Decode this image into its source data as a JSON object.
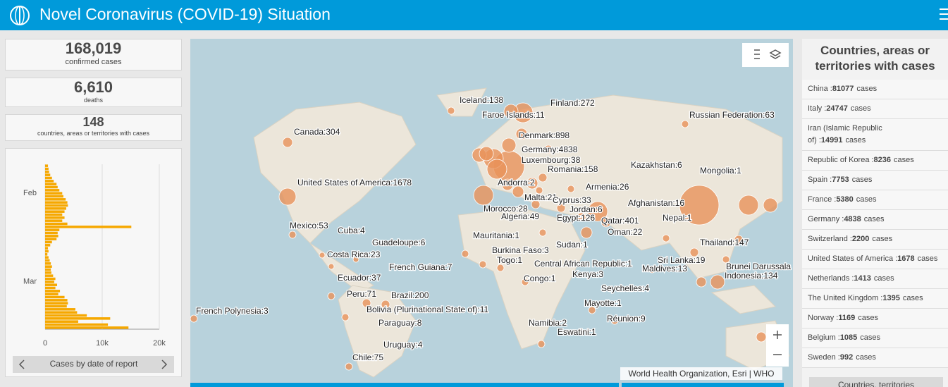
{
  "header": {
    "title": "Novel Coronavirus (COVID-19) Situation"
  },
  "stats": [
    {
      "value": "168,019",
      "label": "confirmed cases"
    },
    {
      "value": "6,610",
      "label": "deaths"
    },
    {
      "value": "148",
      "label": "countries, areas or territories with cases"
    }
  ],
  "chart_data": {
    "type": "bar",
    "orientation": "horizontal",
    "color": "#f6a800",
    "categories": [
      null,
      null,
      null,
      null,
      null,
      null,
      null,
      null,
      null,
      "Feb",
      null,
      null,
      null,
      null,
      null,
      null,
      null,
      null,
      null,
      null,
      null,
      null,
      null,
      null,
      null,
      null,
      null,
      null,
      null,
      null,
      null,
      null,
      null,
      null,
      null,
      null,
      null,
      null,
      "Mar",
      null,
      null,
      null,
      null,
      null,
      null,
      null,
      null,
      null,
      null,
      null,
      null,
      null,
      null,
      null
    ],
    "values": [
      500,
      600,
      700,
      900,
      1200,
      1500,
      2000,
      2200,
      2500,
      3000,
      3200,
      3600,
      3900,
      4000,
      3700,
      3400,
      3000,
      3400,
      3000,
      3900,
      15100,
      2500,
      2200,
      2300,
      2000,
      1200,
      900,
      500,
      600,
      400,
      600,
      800,
      1000,
      1200,
      1000,
      1100,
      1400,
      1800,
      1600,
      2100,
      1800,
      2600,
      2300,
      3400,
      3900,
      4000,
      3800,
      5300,
      5600,
      7300,
      11400,
      5800,
      11000,
      14600
    ],
    "xlim": [
      0,
      20000
    ],
    "xticks": [
      0,
      {
        "value": 10000,
        "label": "10k"
      },
      {
        "value": 20000,
        "label": "20k"
      }
    ],
    "grid": true,
    "caption": "Cases by date of report"
  },
  "map": {
    "labels": [
      "Iceland:138",
      "Finland:272",
      "Faroe Islands:11",
      "Russian Federation:63",
      "Canada:304",
      "Denmark:898",
      "Germany:4838",
      "Luxembourg:38",
      "Kazakhstan:6",
      "Romania:158",
      "Mongolia:1",
      "United States of America:1678",
      "Andorra:2",
      "Armenia:26",
      "Malta:21",
      "Cyprus:33",
      "Afghanistan:16",
      "Morocco:28",
      "Jordan:6",
      "Algeria:49",
      "Egypt:126",
      "Qatar:401",
      "Nepal:1",
      "Mexico:53",
      "Cuba:4",
      "Oman:22",
      "Mauritania:1",
      "Guadeloupe:6",
      "Thailand:147",
      "Sudan:1",
      "Burkina Faso:3",
      "Costa Rica:23",
      "Togo:1",
      "Sri Lanka:19",
      "Central African Republic:1",
      "French Guiana:7",
      "Brunei Darussala",
      "Maldives:13",
      "Kenya:3",
      "Ecuador:37",
      "Indonesia:134",
      "Congo:1",
      "Seychelles:4",
      "Peru:71",
      "Brazil:200",
      "Mayotte:1",
      "Bolivia (Plurinational State of):11",
      "French Polynesia:3",
      "Réunion:9",
      "Paraguay:8",
      "Namibia:2",
      "Eswatini:1",
      "Uruguay:4",
      "Chile:75"
    ],
    "attribution": "World Health Organization, Esri | WHO"
  },
  "list": {
    "title": "Countries, areas or territories with cases",
    "sep": ":",
    "unit": "cases",
    "items": [
      [
        "China",
        81077
      ],
      [
        "Italy",
        24747
      ],
      [
        "Iran (Islamic Republic of)",
        14991
      ],
      [
        "Republic of Korea",
        8236
      ],
      [
        "Spain",
        7753
      ],
      [
        "France",
        5380
      ],
      [
        "Germany",
        4838
      ],
      [
        "Switzerland",
        2200
      ],
      [
        "United States of America",
        1678
      ],
      [
        "Netherlands",
        1413
      ],
      [
        "The United Kingdom",
        1395
      ],
      [
        "Norway",
        1169
      ],
      [
        "Belgium",
        1085
      ],
      [
        "Sweden",
        992
      ]
    ],
    "footer": "Countries, territories"
  }
}
